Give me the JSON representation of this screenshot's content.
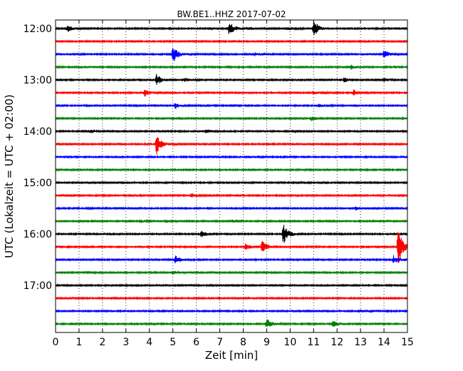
{
  "chart_data": {
    "type": "line",
    "title": "BW.BE1..HHZ 2017-07-02",
    "xlabel": "Zeit  [min]",
    "ylabel": "UTC (Lokalzeit = UTC + 02:00)",
    "xlim": [
      0,
      15
    ],
    "x_ticks": [
      "0",
      "1",
      "2",
      "3",
      "4",
      "5",
      "6",
      "7",
      "8",
      "9",
      "10",
      "11",
      "12",
      "13",
      "14",
      "15"
    ],
    "y_ticks": [
      "12:00",
      "13:00",
      "14:00",
      "15:00",
      "16:00",
      "17:00"
    ],
    "grid": "vertical dotted",
    "trace_interval_min": 15,
    "colors": [
      "#000000",
      "#ff0000",
      "#0000ff",
      "#008000"
    ],
    "traces": [
      {
        "start": "12:00",
        "color": "#000000",
        "events": [
          {
            "t": 0.5,
            "a": 5
          },
          {
            "t": 7.4,
            "a": 11
          },
          {
            "t": 11.0,
            "a": 13
          },
          {
            "t": 9.9,
            "a": 2
          }
        ]
      },
      {
        "start": "12:15",
        "color": "#ff0000",
        "events": []
      },
      {
        "start": "12:30",
        "color": "#0000ff",
        "events": [
          {
            "t": 5.0,
            "a": 13
          },
          {
            "t": 14.0,
            "a": 6
          },
          {
            "t": 8.5,
            "a": 2
          }
        ]
      },
      {
        "start": "12:45",
        "color": "#008000",
        "events": [
          {
            "t": 12.6,
            "a": 3
          }
        ]
      },
      {
        "start": "13:00",
        "color": "#000000",
        "events": [
          {
            "t": 4.3,
            "a": 8
          },
          {
            "t": 5.5,
            "a": 3
          },
          {
            "t": 12.3,
            "a": 3
          },
          {
            "t": 14.0,
            "a": 2
          }
        ]
      },
      {
        "start": "13:15",
        "color": "#ff0000",
        "events": [
          {
            "t": 3.8,
            "a": 5
          },
          {
            "t": 11.0,
            "a": 3
          },
          {
            "t": 12.7,
            "a": 4
          }
        ]
      },
      {
        "start": "13:30",
        "color": "#0000ff",
        "events": [
          {
            "t": 5.1,
            "a": 4
          },
          {
            "t": 11.2,
            "a": 2
          }
        ]
      },
      {
        "start": "13:45",
        "color": "#008000",
        "events": [
          {
            "t": 10.9,
            "a": 3
          }
        ]
      },
      {
        "start": "14:00",
        "color": "#000000",
        "events": [
          {
            "t": 6.4,
            "a": 3
          },
          {
            "t": 10.2,
            "a": 2
          },
          {
            "t": 1.5,
            "a": 2
          }
        ]
      },
      {
        "start": "14:15",
        "color": "#ff0000",
        "events": [
          {
            "t": 4.3,
            "a": 16
          }
        ]
      },
      {
        "start": "14:30",
        "color": "#0000ff",
        "events": []
      },
      {
        "start": "14:45",
        "color": "#008000",
        "events": []
      },
      {
        "start": "15:00",
        "color": "#000000",
        "events": []
      },
      {
        "start": "15:15",
        "color": "#ff0000",
        "events": [
          {
            "t": 5.8,
            "a": 3
          }
        ]
      },
      {
        "start": "15:30",
        "color": "#0000ff",
        "events": [
          {
            "t": 12.8,
            "a": 3
          }
        ]
      },
      {
        "start": "15:45",
        "color": "#008000",
        "events": [
          {
            "t": 3.6,
            "a": 2
          },
          {
            "t": 4.7,
            "a": 2
          },
          {
            "t": 7.5,
            "a": 2
          }
        ]
      },
      {
        "start": "16:00",
        "color": "#000000",
        "events": [
          {
            "t": 6.2,
            "a": 5
          },
          {
            "t": 9.7,
            "a": 16
          }
        ]
      },
      {
        "start": "16:15",
        "color": "#ff0000",
        "events": [
          {
            "t": 8.1,
            "a": 5
          },
          {
            "t": 8.8,
            "a": 9
          },
          {
            "t": 14.6,
            "a": 30
          }
        ]
      },
      {
        "start": "16:30",
        "color": "#0000ff",
        "events": [
          {
            "t": 5.1,
            "a": 6
          },
          {
            "t": 14.4,
            "a": 6
          }
        ]
      },
      {
        "start": "16:45",
        "color": "#008000",
        "events": [
          {
            "t": 5.0,
            "a": 2
          },
          {
            "t": 1.3,
            "a": 1.5
          }
        ]
      },
      {
        "start": "17:00",
        "color": "#000000",
        "events": []
      },
      {
        "start": "17:15",
        "color": "#ff0000",
        "events": []
      },
      {
        "start": "17:30",
        "color": "#0000ff",
        "events": [
          {
            "t": 12.9,
            "a": 2
          }
        ]
      },
      {
        "start": "17:45",
        "color": "#008000",
        "events": [
          {
            "t": 9.0,
            "a": 7
          },
          {
            "t": 11.8,
            "a": 5
          }
        ]
      }
    ]
  }
}
